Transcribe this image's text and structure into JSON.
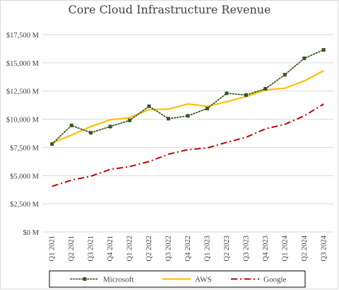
{
  "chart_data": {
    "type": "line",
    "title": "Core Cloud Infrastructure Revenue",
    "categories": [
      "Q1 2021",
      "Q2 2021",
      "Q3 2021",
      "Q4 2021",
      "Q1 2022",
      "Q2 2022",
      "Q3 2022",
      "Q4 2022",
      "Q1 2023",
      "Q2 2023",
      "Q3 2023",
      "Q4 2023",
      "Q1 2024",
      "Q2 2024",
      "Q3 2024"
    ],
    "series": [
      {
        "name": "Microsoft",
        "color": "#375623",
        "style": "dotted-with-square-markers",
        "values": [
          7800,
          9450,
          8800,
          9350,
          9900,
          11150,
          10050,
          10300,
          10950,
          12300,
          12150,
          12700,
          13950,
          15400,
          16150
        ]
      },
      {
        "name": "AWS",
        "color": "#FFC000",
        "style": "solid",
        "values": [
          7900,
          8600,
          9350,
          9950,
          10150,
          10850,
          10900,
          11350,
          11150,
          11550,
          12000,
          12600,
          12750,
          13400,
          14300
        ]
      },
      {
        "name": "Google",
        "color": "#C00000",
        "style": "dash-dot",
        "values": [
          4050,
          4600,
          4950,
          5550,
          5800,
          6250,
          6900,
          7300,
          7450,
          7950,
          8400,
          9150,
          9550,
          10300,
          11350
        ]
      }
    ],
    "y_ticks": [
      "$0 M",
      "$2,500 M",
      "$5,000 M",
      "$7,500 M",
      "$10,000 M",
      "$12,500 M",
      "$15,000 M",
      "$17,500 M"
    ],
    "ylim": [
      0,
      17500
    ],
    "grid": true,
    "legend": "bottom"
  }
}
